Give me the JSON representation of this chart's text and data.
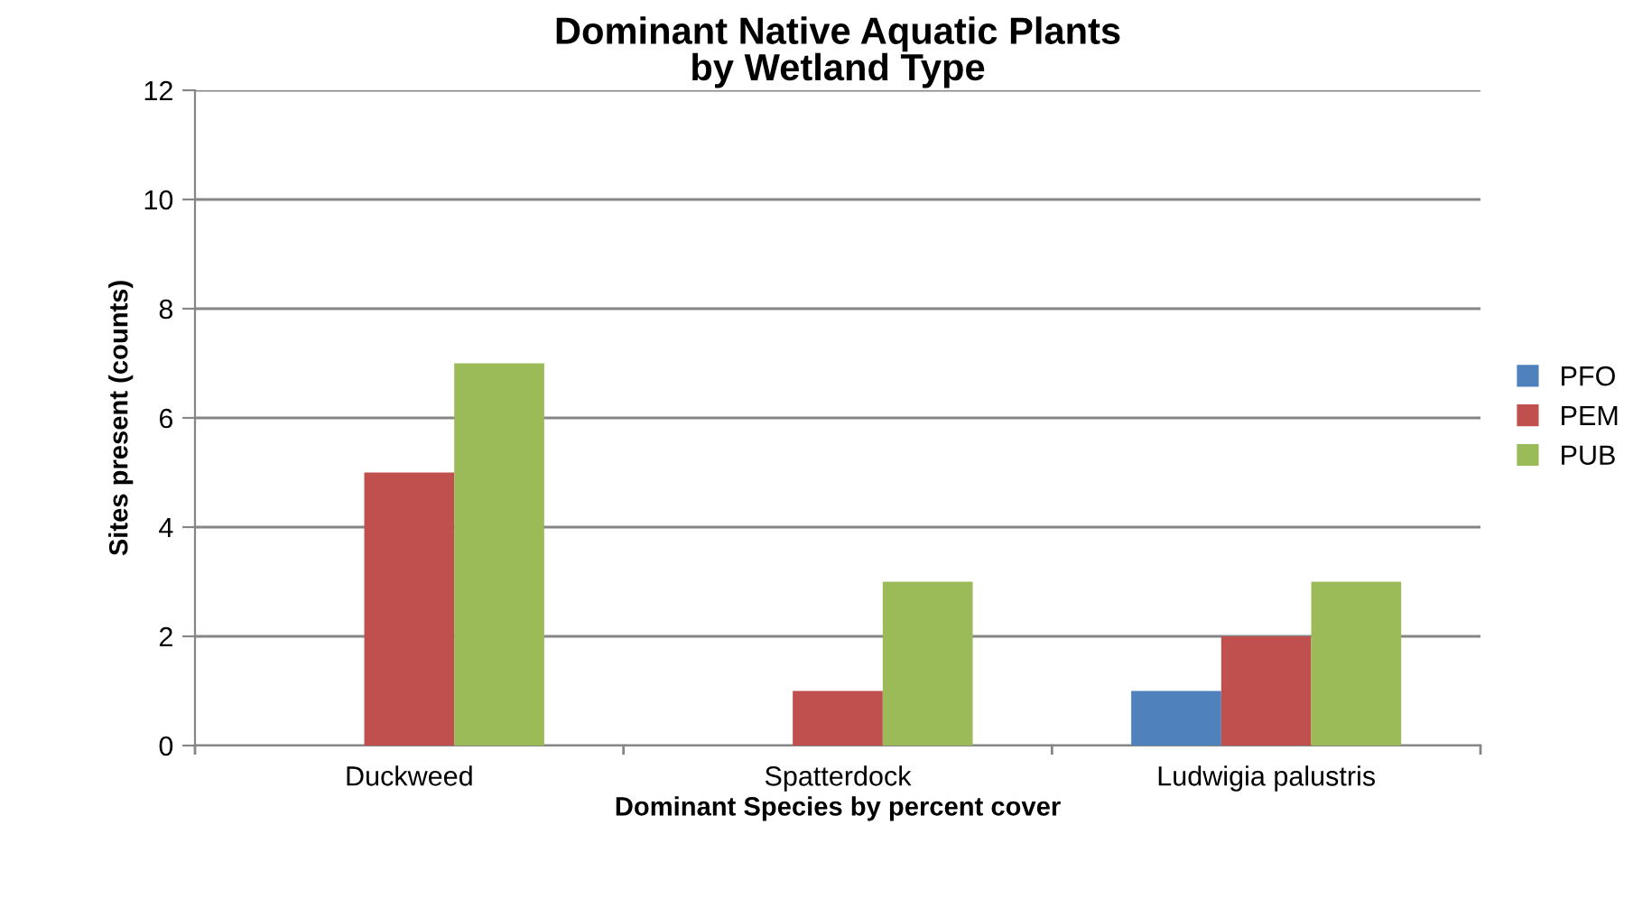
{
  "chart_data": {
    "type": "bar",
    "title": "Dominant Native Aquatic Plants\nby Wetland Type",
    "xlabel": "Dominant Species by percent cover",
    "ylabel": "Sites present (counts)",
    "categories": [
      "Duckweed",
      "Spatterdock",
      "Ludwigia palustris"
    ],
    "series": [
      {
        "name": "PFO",
        "color": "#4f81bd",
        "values": [
          0,
          0,
          1
        ]
      },
      {
        "name": "PEM",
        "color": "#c0504d",
        "values": [
          5,
          1,
          2
        ]
      },
      {
        "name": "PUB",
        "color": "#9bbb59",
        "values": [
          7,
          3,
          3
        ]
      }
    ],
    "ylim": [
      0,
      12
    ],
    "yticks": [
      0,
      2,
      4,
      6,
      8,
      10,
      12
    ],
    "grid": "y",
    "legend": "right"
  }
}
